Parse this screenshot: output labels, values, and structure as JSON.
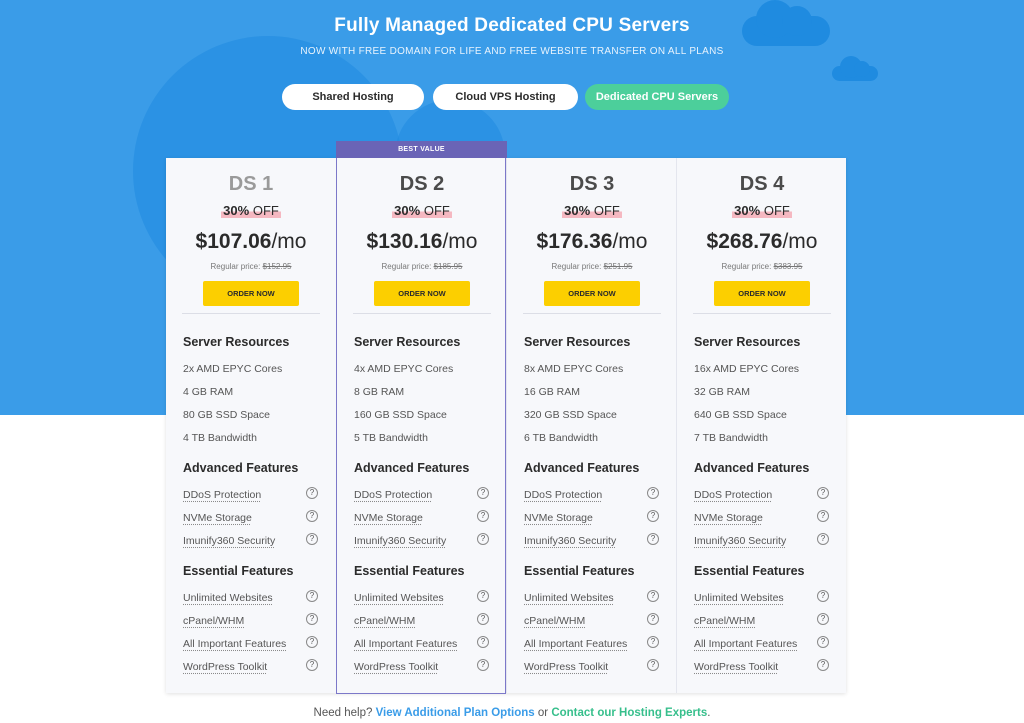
{
  "hero": {
    "title": "Fully Managed Dedicated CPU Servers",
    "subtitle": "NOW WITH FREE DOMAIN FOR LIFE AND FREE WEBSITE TRANSFER ON ALL PLANS"
  },
  "tabs": [
    {
      "label": "Shared Hosting",
      "active": false
    },
    {
      "label": "Cloud VPS Hosting",
      "active": false
    },
    {
      "label": "Dedicated CPU Servers",
      "active": true
    }
  ],
  "colors": {
    "hero_bg": "#3a9ce8",
    "active_tab": "#4ccf9b",
    "order_button": "#fccf00",
    "best_value_badge": "#6a64b6",
    "link_blue": "#3a9ce8",
    "link_green": "#37bf8c"
  },
  "plans": [
    {
      "name": "DS 1",
      "discount_pct": "30%",
      "discount_word": "OFF",
      "price": "$107.06",
      "per": "/mo",
      "regular_label": "Regular price:",
      "regular_price": "$152.95",
      "order_label": "ORDER NOW",
      "resources": [
        "2x AMD EPYC Cores",
        "4 GB RAM",
        "80 GB SSD Space",
        "4 TB Bandwidth"
      ]
    },
    {
      "name": "DS 2",
      "badge": "BEST VALUE",
      "discount_pct": "30%",
      "discount_word": "OFF",
      "price": "$130.16",
      "per": "/mo",
      "regular_label": "Regular price:",
      "regular_price": "$185.95",
      "order_label": "ORDER NOW",
      "resources": [
        "4x AMD EPYC Cores",
        "8 GB RAM",
        "160 GB SSD Space",
        "5 TB Bandwidth"
      ]
    },
    {
      "name": "DS 3",
      "discount_pct": "30%",
      "discount_word": "OFF",
      "price": "$176.36",
      "per": "/mo",
      "regular_label": "Regular price:",
      "regular_price": "$251.95",
      "order_label": "ORDER NOW",
      "resources": [
        "8x AMD EPYC Cores",
        "16 GB RAM",
        "320 GB SSD Space",
        "6 TB Bandwidth"
      ]
    },
    {
      "name": "DS 4",
      "discount_pct": "30%",
      "discount_word": "OFF",
      "price": "$268.76",
      "per": "/mo",
      "regular_label": "Regular price:",
      "regular_price": "$383.95",
      "order_label": "ORDER NOW",
      "resources": [
        "16x AMD EPYC Cores",
        "32 GB RAM",
        "640 GB SSD Space",
        "7 TB Bandwidth"
      ]
    }
  ],
  "sections": {
    "resources_title": "Server Resources",
    "advanced_title": "Advanced Features",
    "advanced_items": [
      "DDoS Protection",
      "NVMe Storage",
      "Imunify360 Security"
    ],
    "essential_title": "Essential Features",
    "essential_items": [
      "Unlimited Websites",
      "cPanel/WHM",
      "All Important Features",
      "WordPress Toolkit"
    ],
    "help_icon_glyph": "?"
  },
  "footer": {
    "prefix": "Need help?",
    "link1": "View Additional Plan Options",
    "middle": "or",
    "link2": "Contact our Hosting Experts",
    "suffix": "."
  }
}
